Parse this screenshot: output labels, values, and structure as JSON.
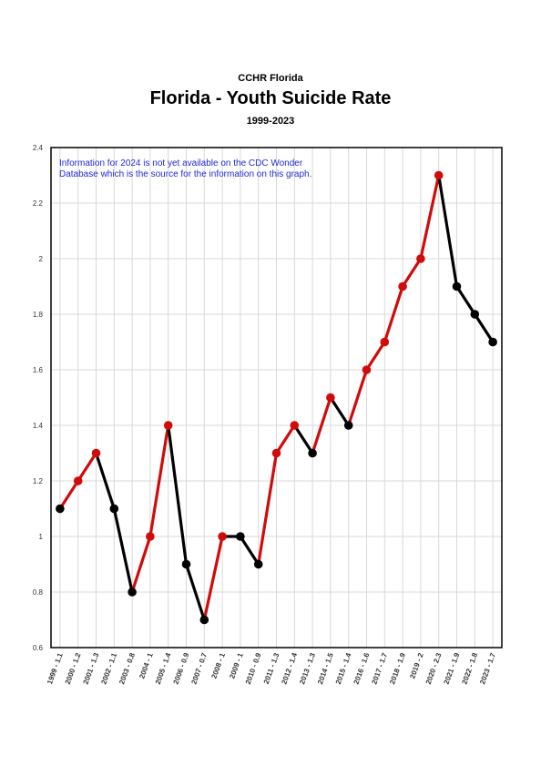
{
  "header": {
    "org": "CCHR Florida",
    "title": "Florida - Youth Suicide Rate",
    "subtitle": "1999-2023"
  },
  "colors": {
    "rise": "#000000",
    "fall": "#d10a0a",
    "note": "#1f2ad8",
    "grid": "#d9d9d9"
  },
  "chart_data": {
    "type": "line",
    "title": "Florida - Youth Suicide Rate",
    "subtitle": "1999-2023",
    "xlabel": "",
    "ylabel": "",
    "ylim": [
      0.6,
      2.4
    ],
    "yticks": [
      "0.6",
      "0.8",
      "1",
      "1.2",
      "1.4",
      "1.6",
      "1.8",
      "2",
      "2.2",
      "2.4"
    ],
    "grid": true,
    "note": [
      "Information for 2024 is not yet available on the CDC Wonder",
      "Database which is the source for the information on this graph."
    ],
    "categories": [
      "1999 - 1.1",
      "2000 - 1.2",
      "2001 - 1.3",
      "2002 - 1.1",
      "2003 - 0.8",
      "2004 - 1",
      "2005 - 1.4",
      "2006 - 0.9",
      "2007 - 0.7",
      "2008 - 1",
      "2009 - 1",
      "2010 - 0.9",
      "2011 - 1.3",
      "2012 - 1.4",
      "2013 - 1.3",
      "2014 - 1.5",
      "2015 - 1.4",
      "2016 - 1.6",
      "2017 - 1.7",
      "2018 - 1.9",
      "2019 - 2",
      "2020 - 2.3",
      "2021 - 1.9",
      "2022 - 1.8",
      "2023 - 1.7"
    ],
    "series": [
      {
        "values": [
          1.1,
          1.2,
          1.3,
          1.1,
          0.8,
          1.0,
          1.4,
          0.9,
          0.7,
          1.0,
          1.0,
          0.9,
          1.3,
          1.4,
          1.3,
          1.5,
          1.4,
          1.6,
          1.7,
          1.9,
          2.0,
          2.3,
          1.9,
          1.8,
          1.7
        ]
      }
    ]
  }
}
